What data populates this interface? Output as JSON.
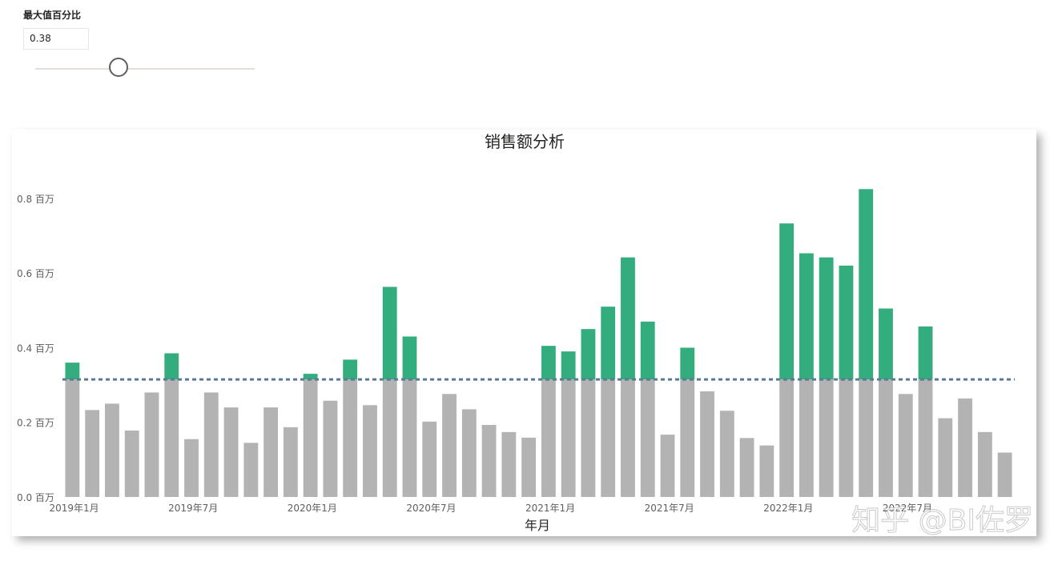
{
  "slicer": {
    "title": "最大值百分比",
    "value": "0.38",
    "slider_fraction": 0.38
  },
  "watermark": "知乎 @BI佐罗",
  "colors": {
    "above": "#33AD7E",
    "below": "#B3B3B3",
    "threshold_line": "#5B7A96"
  },
  "chart_data": {
    "type": "bar",
    "title": "销售额分析",
    "xlabel": "年月",
    "ylabel": "",
    "ylim": [
      0,
      0.95
    ],
    "grid": false,
    "threshold": 0.315,
    "y_ticks": [
      {
        "value": 0.0,
        "label": "0.0 百万"
      },
      {
        "value": 0.2,
        "label": "0.2 百万"
      },
      {
        "value": 0.4,
        "label": "0.4 百万"
      },
      {
        "value": 0.6,
        "label": "0.6 百万"
      },
      {
        "value": 0.8,
        "label": "0.8 百万"
      }
    ],
    "x_ticks": [
      {
        "index": 0,
        "label": "2019年1月"
      },
      {
        "index": 6,
        "label": "2019年7月"
      },
      {
        "index": 12,
        "label": "2020年1月"
      },
      {
        "index": 18,
        "label": "2020年7月"
      },
      {
        "index": 24,
        "label": "2021年1月"
      },
      {
        "index": 30,
        "label": "2021年7月"
      },
      {
        "index": 36,
        "label": "2022年1月"
      },
      {
        "index": 42,
        "label": "2022年7月"
      }
    ],
    "categories": [
      "2019年1月",
      "2019年2月",
      "2019年3月",
      "2019年4月",
      "2019年5月",
      "2019年6月",
      "2019年7月",
      "2019年8月",
      "2019年9月",
      "2019年10月",
      "2019年11月",
      "2019年12月",
      "2020年1月",
      "2020年2月",
      "2020年3月",
      "2020年4月",
      "2020年5月",
      "2020年6月",
      "2020年7月",
      "2020年8月",
      "2020年9月",
      "2020年10月",
      "2020年11月",
      "2020年12月",
      "2021年1月",
      "2021年2月",
      "2021年3月",
      "2021年4月",
      "2021年5月",
      "2021年6月",
      "2021年7月",
      "2021年8月",
      "2021年9月",
      "2021年10月",
      "2021年11月",
      "2021年12月",
      "2022年1月",
      "2022年2月",
      "2022年3月",
      "2022年4月",
      "2022年5月",
      "2022年6月",
      "2022年7月",
      "2022年8月",
      "2022年9月",
      "2022年10月",
      "2022年11月",
      "2022年12月"
    ],
    "values": [
      0.36,
      0.233,
      0.25,
      0.178,
      0.28,
      0.385,
      0.155,
      0.28,
      0.24,
      0.145,
      0.24,
      0.187,
      0.33,
      0.258,
      0.368,
      0.246,
      0.563,
      0.43,
      0.202,
      0.276,
      0.235,
      0.193,
      0.174,
      0.159,
      0.405,
      0.39,
      0.45,
      0.51,
      0.642,
      0.47,
      0.167,
      0.4,
      0.283,
      0.231,
      0.158,
      0.138,
      0.733,
      0.653,
      0.642,
      0.62,
      0.825,
      0.505,
      0.276,
      0.457,
      0.211,
      0.264,
      0.174,
      0.119
    ]
  }
}
